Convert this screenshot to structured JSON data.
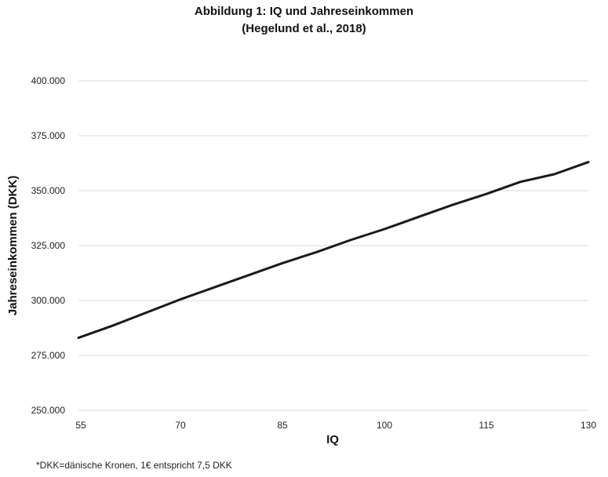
{
  "chart_data": {
    "type": "line",
    "title": "Abbildung 1: IQ und Jahreseinkommen",
    "subtitle": "(Hegelund et al., 2018)",
    "xlabel": "IQ",
    "ylabel": "Jahreseinkommen (DKK)",
    "x_ticks": [
      "55",
      "70",
      "85",
      "100",
      "115",
      "130"
    ],
    "y_ticks": [
      "250.000",
      "275.000",
      "300.000",
      "325.000",
      "350.000",
      "375.000",
      "400.000"
    ],
    "xlim": [
      55,
      130
    ],
    "ylim": [
      250000,
      400000
    ],
    "grid": "horizontal",
    "series": [
      {
        "color": "#1a1a1a",
        "x": [
          55,
          60,
          65,
          70,
          75,
          80,
          85,
          90,
          95,
          100,
          105,
          110,
          115,
          120,
          125,
          130
        ],
        "y": [
          283000,
          288500,
          294500,
          300500,
          306000,
          311500,
          317000,
          322000,
          327500,
          332500,
          338000,
          343500,
          348500,
          354000,
          357500,
          363000
        ]
      }
    ]
  },
  "footnote": "*DKK=dänische Kronen, 1€ entspricht 7,5 DKK"
}
